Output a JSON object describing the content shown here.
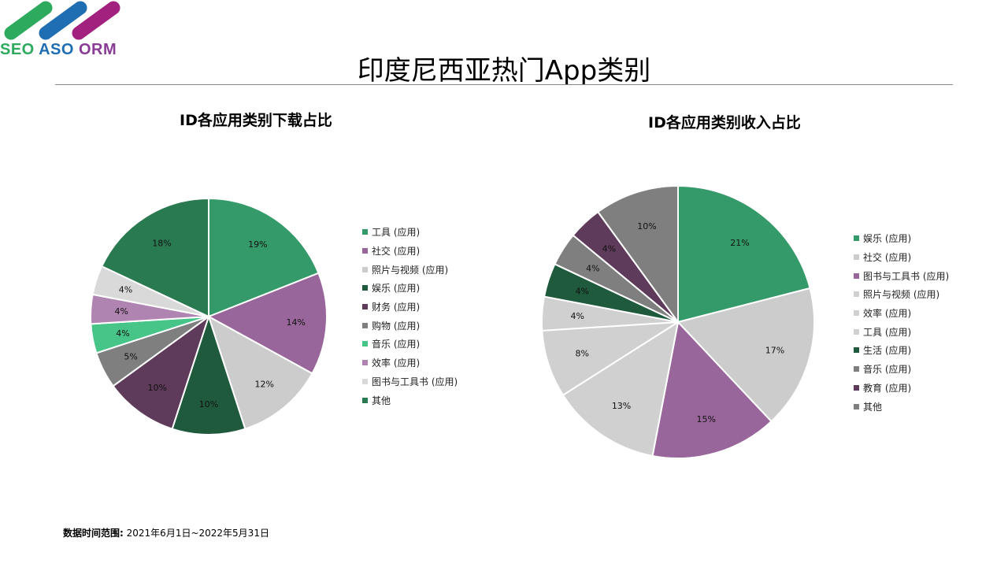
{
  "logo": {
    "text": "SEO ASO ORM",
    "colors": [
      "#2eaa5e",
      "#1f6db3",
      "#a3217e"
    ]
  },
  "title": "印度尼西亚热门App类别",
  "footer": {
    "label": "数据时间范围:",
    "value": "2021年6月1日~2022年5月31日"
  },
  "chart_data": [
    {
      "type": "pie",
      "title": "ID各应用类别下载占比",
      "legend": "right",
      "unit": "%",
      "categories": [
        "工具 (应用)",
        "社交 (应用)",
        "照片与视频 (应用)",
        "娱乐 (应用)",
        "财务 (应用)",
        "购物 (应用)",
        "音乐 (应用)",
        "效率 (应用)",
        "图书与工具书 (应用)",
        "其他"
      ],
      "values": [
        19,
        14,
        12,
        10,
        10,
        5,
        4,
        4,
        4,
        18
      ],
      "labels": [
        "19%",
        "14%",
        "12%",
        "10%",
        "10%",
        "5%",
        "4%",
        "4%",
        "4%",
        "18%"
      ],
      "colors": [
        "#359a69",
        "#98669a",
        "#cccccc",
        "#1f5a3d",
        "#5e3b5a",
        "#7f7f7f",
        "#47c488",
        "#b084b0",
        "#d9d9d9",
        "#2a7a51"
      ]
    },
    {
      "type": "pie",
      "title": "ID各应用类别收入占比",
      "legend": "right",
      "unit": "%",
      "categories": [
        "娱乐 (应用)",
        "社交 (应用)",
        "图书与工具书 (应用)",
        "照片与视频 (应用)",
        "效率 (应用)",
        "工具 (应用)",
        "生活 (应用)",
        "音乐 (应用)",
        "教育 (应用)",
        "其他"
      ],
      "values": [
        21,
        17,
        15,
        13,
        8,
        4,
        4,
        4,
        4,
        10
      ],
      "labels": [
        "21%",
        "17%",
        "15%",
        "13%",
        "8%",
        "4%",
        "4%",
        "4%",
        "4%",
        "10%"
      ],
      "colors": [
        "#359a69",
        "#cccccc",
        "#98669a",
        "#d0d0d0",
        "#d0d0d0",
        "#d0d0d0",
        "#1f5a3d",
        "#7f7f7f",
        "#5e3b5a",
        "#7f7f7f"
      ]
    }
  ]
}
